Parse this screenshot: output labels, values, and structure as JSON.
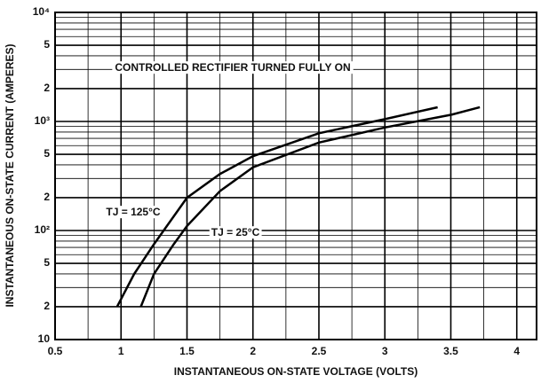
{
  "chart_data": {
    "type": "line",
    "xlabel": "INSTANTANEOUS ON-STATE VOLTAGE (VOLTS)",
    "ylabel": "INSTANTANEOUS ON-STATE CURRENT (AMPERES)",
    "annotation": "CONTROLLED RECTIFIER TURNED FULLY ON",
    "ylog": true,
    "grid": true,
    "xlim": [
      0.5,
      4.15
    ],
    "ylim": [
      10,
      10000
    ],
    "xticks": [
      0.5,
      1.0,
      1.5,
      2.0,
      2.5,
      3.0,
      3.5,
      4.0
    ],
    "yticks": [
      10,
      {
        "value": 20,
        "label": "2"
      },
      {
        "value": 50,
        "label": "5"
      },
      {
        "value": 100,
        "label": "10²"
      },
      {
        "value": 200,
        "label": "2"
      },
      {
        "value": 500,
        "label": "5"
      },
      {
        "value": 1000,
        "label": "10³"
      },
      {
        "value": 2000,
        "label": "2"
      },
      {
        "value": 5000,
        "label": "5"
      },
      {
        "value": 10000,
        "label": "10⁴"
      }
    ],
    "xgrid": [
      0.75,
      1.25,
      1.75,
      2.25,
      2.75,
      3.25,
      3.75
    ],
    "ygrid": [
      30,
      40,
      60,
      70,
      80,
      90,
      300,
      400,
      600,
      700,
      800,
      900,
      3000,
      4000,
      6000,
      7000,
      8000,
      9000
    ],
    "series": [
      {
        "name": "TJ = 125°C",
        "color": "#000000",
        "x": [
          0.97,
          1.1,
          1.25,
          1.5,
          1.75,
          2.0,
          2.5,
          3.0,
          3.4
        ],
        "values": [
          20,
          40,
          75,
          200,
          330,
          480,
          780,
          1050,
          1350
        ]
      },
      {
        "name": "TJ = 25°C",
        "color": "#000000",
        "x": [
          1.15,
          1.25,
          1.4,
          1.5,
          1.75,
          2.0,
          2.5,
          3.0,
          3.5,
          3.72
        ],
        "values": [
          20,
          40,
          75,
          110,
          230,
          380,
          640,
          880,
          1150,
          1350
        ]
      }
    ]
  }
}
